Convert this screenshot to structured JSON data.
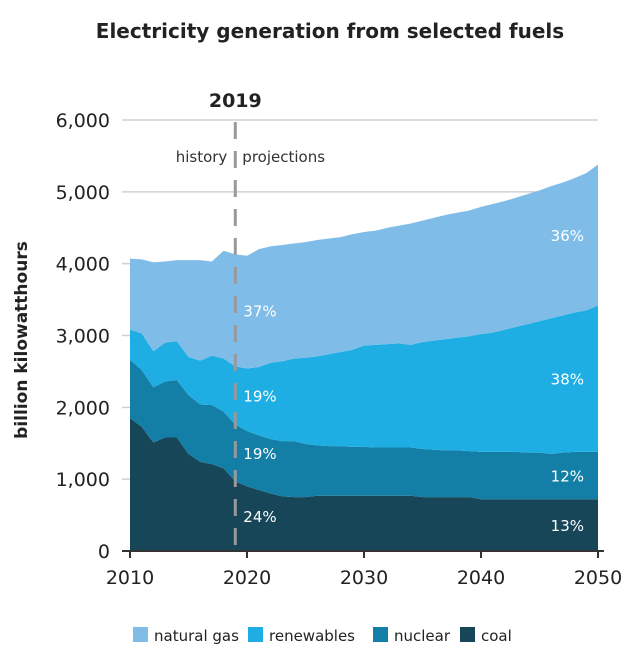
{
  "chart_data": {
    "type": "area",
    "stacked": true,
    "title": "Electricity generation from selected fuels",
    "xlabel": "",
    "ylabel": "billion kilowatthours",
    "xlim": [
      2010,
      2050
    ],
    "ylim": [
      0,
      6000
    ],
    "x_ticks": [
      "2010",
      "2020",
      "2030",
      "2040",
      "2050"
    ],
    "y_ticks": [
      "0",
      "1,000",
      "2,000",
      "3,000",
      "4,000",
      "5,000",
      "6,000"
    ],
    "grid": "horizontal",
    "legend_position": "bottom",
    "divider": {
      "year": "2019",
      "left_label": "history",
      "right_label": "projections"
    },
    "x": [
      2010,
      2011,
      2012,
      2013,
      2014,
      2015,
      2016,
      2017,
      2018,
      2019,
      2020,
      2021,
      2022,
      2023,
      2024,
      2025,
      2026,
      2027,
      2028,
      2029,
      2030,
      2031,
      2032,
      2033,
      2034,
      2035,
      2036,
      2037,
      2038,
      2039,
      2040,
      2041,
      2042,
      2043,
      2044,
      2045,
      2046,
      2047,
      2048,
      2049,
      2050
    ],
    "series": [
      {
        "name": "coal",
        "color": "#174659",
        "values": [
          1850,
          1730,
          1510,
          1580,
          1580,
          1350,
          1240,
          1210,
          1150,
          970,
          900,
          850,
          800,
          760,
          750,
          750,
          770,
          770,
          770,
          770,
          770,
          770,
          770,
          770,
          770,
          750,
          750,
          750,
          750,
          750,
          720,
          720,
          720,
          720,
          720,
          720,
          720,
          720,
          720,
          720,
          720
        ],
        "labels": [
          {
            "year": 2019,
            "text": "24%"
          },
          {
            "year": 2050,
            "text": "13%"
          }
        ]
      },
      {
        "name": "nuclear",
        "color": "#137ea6",
        "values": [
          810,
          790,
          770,
          780,
          800,
          820,
          800,
          820,
          790,
          790,
          770,
          760,
          760,
          770,
          780,
          740,
          700,
          690,
          690,
          680,
          680,
          670,
          670,
          670,
          670,
          670,
          660,
          650,
          650,
          640,
          660,
          660,
          660,
          660,
          650,
          650,
          630,
          650,
          660,
          660,
          660
        ],
        "labels": [
          {
            "year": 2019,
            "text": "19%"
          },
          {
            "year": 2050,
            "text": "12%"
          }
        ]
      },
      {
        "name": "renewables",
        "color": "#1eaee4",
        "values": [
          420,
          510,
          500,
          540,
          540,
          530,
          610,
          690,
          740,
          810,
          870,
          950,
          1060,
          1110,
          1150,
          1200,
          1240,
          1280,
          1310,
          1350,
          1410,
          1430,
          1440,
          1450,
          1430,
          1490,
          1520,
          1550,
          1570,
          1600,
          1640,
          1660,
          1700,
          1740,
          1790,
          1830,
          1890,
          1910,
          1940,
          1970,
          2040
        ],
        "labels": [
          {
            "year": 2019,
            "text": "19%"
          },
          {
            "year": 2050,
            "text": "38%"
          }
        ]
      },
      {
        "name": "natural gas",
        "color": "#7fbde8",
        "values": [
          990,
          1030,
          1240,
          1130,
          1130,
          1350,
          1400,
          1310,
          1500,
          1560,
          1570,
          1640,
          1620,
          1620,
          1600,
          1610,
          1620,
          1610,
          1600,
          1610,
          1580,
          1590,
          1620,
          1640,
          1690,
          1690,
          1710,
          1730,
          1740,
          1750,
          1770,
          1790,
          1790,
          1800,
          1810,
          1820,
          1840,
          1850,
          1870,
          1910,
          1960
        ],
        "labels": [
          {
            "year": 2019,
            "text": "37%"
          },
          {
            "year": 2050,
            "text": "36%"
          }
        ]
      }
    ],
    "legend_order": [
      "natural gas",
      "renewables",
      "nuclear",
      "coal"
    ]
  }
}
